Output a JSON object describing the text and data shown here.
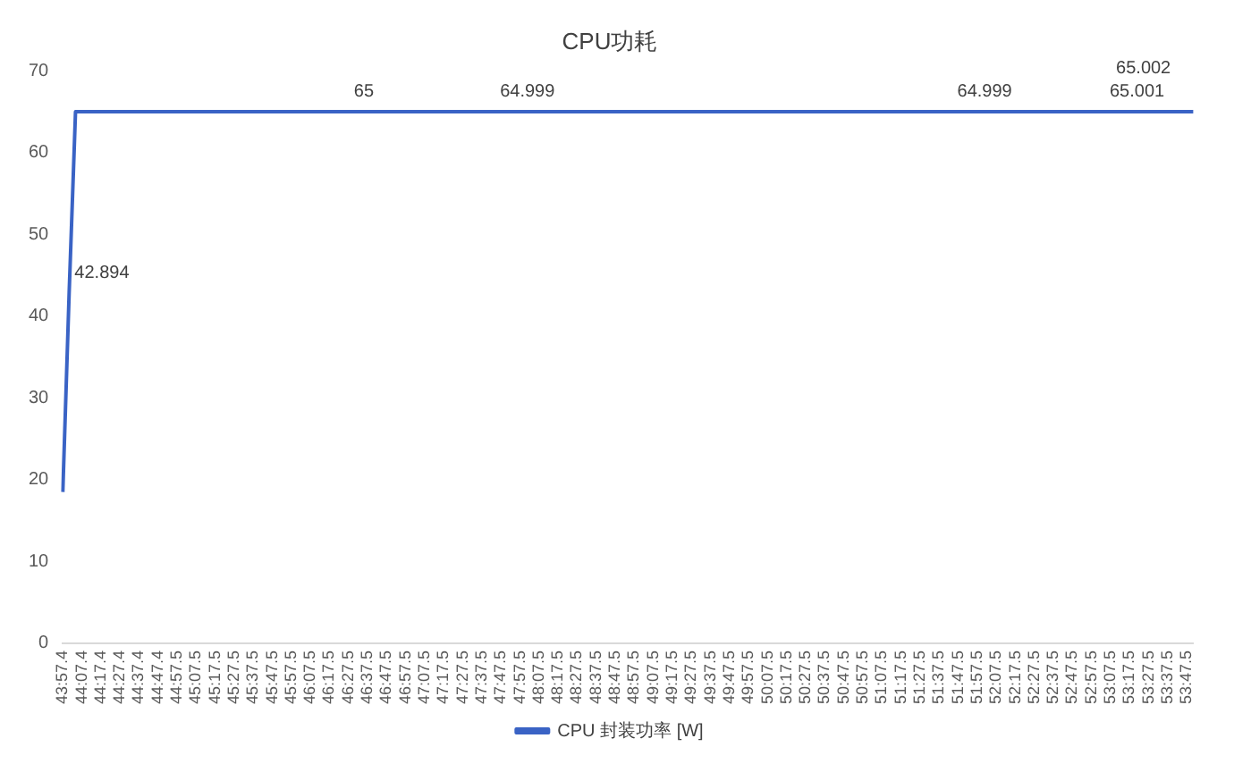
{
  "chart_data": {
    "type": "line",
    "title": "CPU功耗",
    "categories": [
      "43:57.4",
      null,
      null,
      "44:07.4",
      null,
      null,
      "44:17.4",
      null,
      null,
      "44:27.4",
      null,
      null,
      "44:37.4",
      null,
      null,
      "44:47.4",
      null,
      null,
      "44:57.5",
      null,
      null,
      "45:07.5",
      null,
      null,
      "45:17.5",
      null,
      null,
      "45:27.5",
      null,
      null,
      "45:37.5",
      null,
      null,
      "45:47.5",
      null,
      null,
      "45:57.5",
      null,
      null,
      "46:07.5",
      null,
      null,
      "46:17.5",
      null,
      null,
      "46:27.5",
      null,
      null,
      "46:37.5",
      null,
      null,
      "46:47.5",
      null,
      null,
      "46:57.5",
      null,
      null,
      "47:07.5",
      null,
      null,
      "47:17.5",
      null,
      null,
      "47:27.5",
      null,
      null,
      "47:37.5",
      null,
      null,
      "47:47.5",
      null,
      null,
      "47:57.5",
      null,
      null,
      "48:07.5",
      null,
      null,
      "48:17.5",
      null,
      null,
      "48:27.5",
      null,
      null,
      "48:37.5",
      null,
      null,
      "48:47.5",
      null,
      null,
      "48:57.5",
      null,
      null,
      "49:07.5",
      null,
      null,
      "49:17.5",
      null,
      null,
      "49:27.5",
      null,
      null,
      "49:37.5",
      null,
      null,
      "49:47.5",
      null,
      null,
      "49:57.5",
      null,
      null,
      "50:07.5",
      null,
      null,
      "50:17.5",
      null,
      null,
      "50:27.5",
      null,
      null,
      "50:37.5",
      null,
      null,
      "50:47.5",
      null,
      null,
      "50:57.5",
      null,
      null,
      "51:07.5",
      null,
      null,
      "51:17.5",
      null,
      null,
      "51:27.5",
      null,
      null,
      "51:37.5",
      null,
      null,
      "51:47.5",
      null,
      null,
      "51:57.5",
      null,
      null,
      "52:07.5",
      null,
      null,
      "52:17.5",
      null,
      null,
      "52:27.5",
      null,
      null,
      "52:37.5",
      null,
      null,
      "52:47.5",
      null,
      null,
      "52:57.5",
      null,
      null,
      "53:07.5",
      null,
      null,
      "53:17.5",
      null,
      null,
      "53:27.5",
      null,
      null,
      "53:37.5",
      null,
      null,
      "53:47.5",
      null
    ],
    "series": [
      {
        "name": "CPU 封装功率 [W]",
        "color": "#3a63c5",
        "values": [
          18.5,
          42.894,
          65,
          65,
          65,
          65,
          65,
          65,
          65,
          65,
          65,
          65,
          65,
          65,
          65,
          65,
          65,
          65,
          65,
          65,
          65,
          65,
          65,
          65,
          65,
          65,
          65,
          65,
          65,
          65,
          65,
          65,
          65,
          65,
          65,
          65,
          65,
          65,
          65,
          65,
          65,
          65,
          65,
          65,
          65,
          65,
          65,
          65,
          65,
          65,
          65,
          65,
          65,
          65,
          65,
          65,
          65,
          65,
          65,
          65,
          65,
          65,
          65,
          65,
          65,
          65,
          65,
          65,
          64.999,
          65,
          65,
          65,
          65,
          65,
          65,
          65,
          65,
          65,
          65,
          65,
          65,
          65,
          65,
          65,
          65,
          65,
          65,
          65,
          65,
          65,
          65,
          65,
          65,
          65,
          65,
          65,
          65,
          65,
          65,
          65,
          65,
          65,
          65,
          65,
          65,
          65,
          65,
          65,
          65,
          65,
          65,
          65,
          65,
          65,
          65,
          65,
          65,
          65,
          65,
          65,
          65,
          65,
          65,
          65,
          65,
          65,
          65,
          65,
          65,
          65,
          65,
          65,
          65,
          65,
          65,
          65,
          65,
          65,
          65,
          65,
          64.999,
          65,
          65,
          65,
          65,
          65,
          65,
          65,
          65,
          65,
          65,
          65,
          65,
          65,
          65,
          65,
          65,
          65,
          65,
          65,
          65,
          65,
          65,
          65,
          65.001,
          65.002,
          65,
          65,
          65,
          65,
          65,
          65,
          65,
          65,
          65,
          65,
          65,
          65,
          65
        ],
        "value_labels": [
          null,
          "42.894",
          null,
          null,
          null,
          null,
          null,
          null,
          null,
          null,
          null,
          null,
          null,
          null,
          null,
          null,
          null,
          null,
          null,
          null,
          null,
          null,
          null,
          null,
          null,
          null,
          null,
          null,
          null,
          null,
          null,
          null,
          null,
          null,
          null,
          null,
          null,
          null,
          null,
          null,
          null,
          null,
          null,
          null,
          null,
          "65",
          null,
          null,
          null,
          null,
          null,
          null,
          null,
          null,
          null,
          null,
          null,
          null,
          null,
          null,
          null,
          null,
          null,
          null,
          null,
          null,
          null,
          null,
          "64.999",
          null,
          null,
          null,
          null,
          null,
          null,
          null,
          null,
          null,
          null,
          null,
          null,
          null,
          null,
          null,
          null,
          null,
          null,
          null,
          null,
          null,
          null,
          null,
          null,
          null,
          null,
          null,
          null,
          null,
          null,
          null,
          null,
          null,
          null,
          null,
          null,
          null,
          null,
          null,
          null,
          null,
          null,
          null,
          null,
          null,
          null,
          null,
          null,
          null,
          null,
          null,
          null,
          null,
          null,
          null,
          null,
          null,
          null,
          null,
          null,
          null,
          null,
          null,
          null,
          null,
          null,
          null,
          null,
          null,
          null,
          null,
          "64.999",
          null,
          null,
          null,
          null,
          null,
          null,
          null,
          null,
          null,
          null,
          null,
          null,
          null,
          null,
          null,
          null,
          null,
          null,
          null,
          null,
          null,
          null,
          null,
          "65.001",
          "65.002",
          null,
          null,
          null,
          null,
          null,
          null,
          null,
          null,
          null,
          null,
          null,
          null,
          null
        ]
      }
    ],
    "ylim": [
      0,
      70
    ],
    "yticks": [
      0,
      10,
      20,
      30,
      40,
      50,
      60,
      70
    ],
    "grid": false,
    "legend": "bottom",
    "marker": "none",
    "line_style": "solid"
  }
}
